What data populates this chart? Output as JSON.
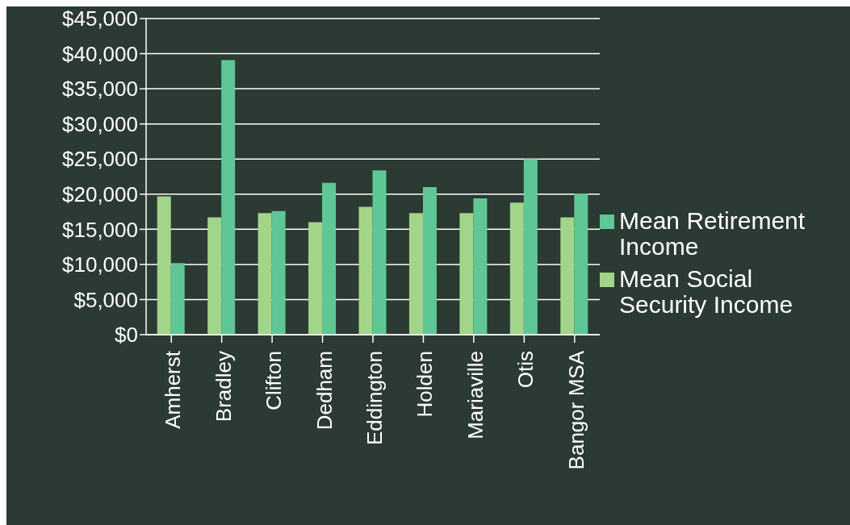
{
  "chart_data": {
    "type": "bar",
    "categories": [
      "Amherst",
      "Bradley",
      "Clifton",
      "Dedham",
      "Eddington",
      "Holden",
      "Mariaville",
      "Otis",
      "Bangor MSA"
    ],
    "series": [
      {
        "name": "Mean Social Security Income",
        "color": "#a2d58a",
        "values": [
          19700,
          16700,
          17300,
          16000,
          18200,
          17300,
          17300,
          18800,
          16700
        ]
      },
      {
        "name": "Mean Retirement Income",
        "color": "#5fc795",
        "values": [
          10200,
          39100,
          17600,
          21600,
          23400,
          21000,
          19400,
          25000,
          20100
        ]
      }
    ],
    "ylim": [
      0,
      45000
    ],
    "yticks": [
      {
        "value": 0,
        "label": "$0"
      },
      {
        "value": 5000,
        "label": "$5,000"
      },
      {
        "value": 10000,
        "label": "$10,000"
      },
      {
        "value": 15000,
        "label": "$15,000"
      },
      {
        "value": 20000,
        "label": "$20,000"
      },
      {
        "value": 25000,
        "label": "$25,000"
      },
      {
        "value": 30000,
        "label": "$30,000"
      },
      {
        "value": 35000,
        "label": "$35,000"
      },
      {
        "value": 40000,
        "label": "$40,000"
      },
      {
        "value": 45000,
        "label": "$45,000"
      }
    ],
    "grid": "y",
    "legend": "right"
  }
}
